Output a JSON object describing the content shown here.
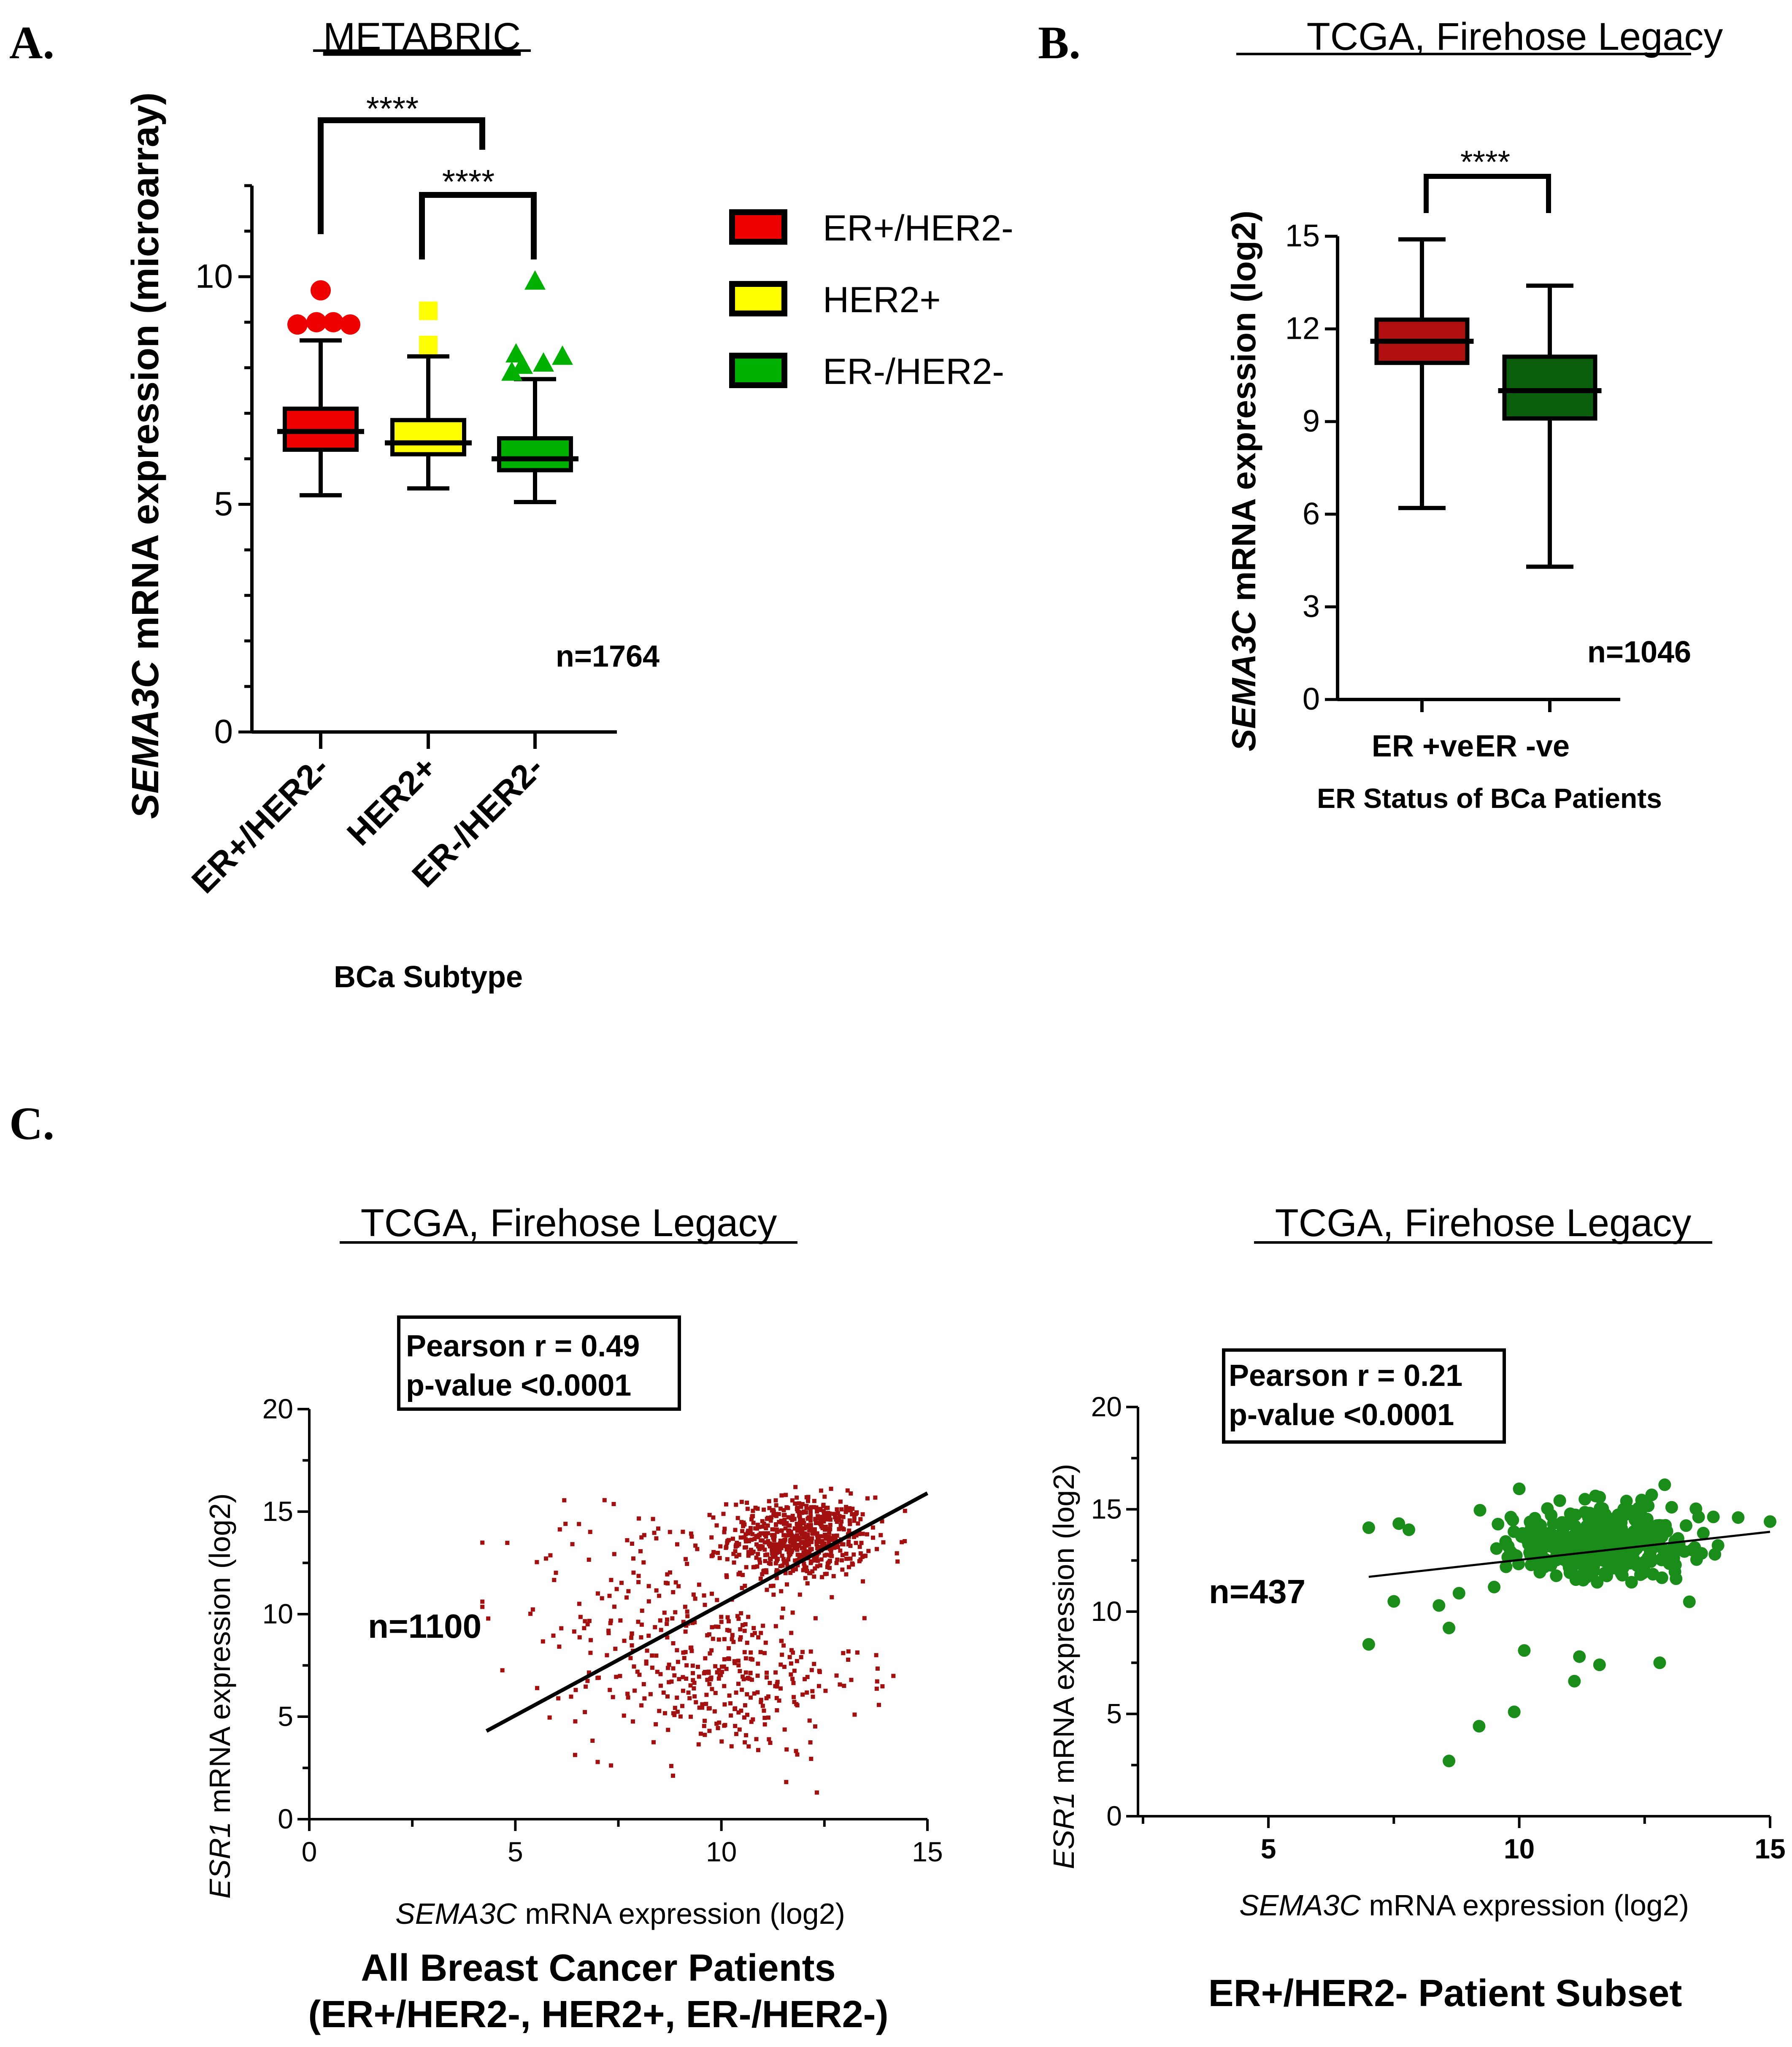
{
  "panel_labels": {
    "a": "A",
    "b": "B",
    "c": "C"
  },
  "colors": {
    "er_pos_her2_neg": "#ee0000",
    "her2_pos": "#ffff00",
    "er_neg_her2_neg": "#00b000",
    "er_pos_box": "#b01010",
    "er_neg_box": "#0b5e0b",
    "scatter_all": "#a31010",
    "scatter_subset": "#1a8c1a"
  },
  "chart_data": [
    {
      "id": "panelA",
      "type": "box",
      "title": "METABRIC",
      "xlabel": "BCa Subtype",
      "ylabel_italic": "SEMA3C",
      "ylabel_rest": " mRNA expression (microarray)",
      "ylim": [
        0,
        12
      ],
      "yticks": [
        0,
        5,
        10
      ],
      "n_label": "n=1764",
      "significance": [
        "****",
        "****"
      ],
      "legend": [
        "ER+/HER2-",
        "HER2+",
        "ER-/HER2-"
      ],
      "categories": [
        "ER+/HER2-",
        "HER2+",
        "ER-/HER2-"
      ],
      "boxes": [
        {
          "name": "ER+/HER2-",
          "whisker_low": 5.2,
          "q1": 6.2,
          "median": 6.6,
          "q3": 7.1,
          "whisker_high": 8.6,
          "outliers": [
            8.95,
            9.0,
            9.0,
            8.95,
            9.7
          ]
        },
        {
          "name": "HER2+",
          "whisker_low": 5.35,
          "q1": 6.1,
          "median": 6.35,
          "q3": 6.85,
          "whisker_high": 8.25,
          "outliers": [
            8.5,
            9.25
          ]
        },
        {
          "name": "ER-/HER2-",
          "whisker_low": 5.05,
          "q1": 5.75,
          "median": 6.0,
          "q3": 6.45,
          "whisker_high": 7.75,
          "outliers": [
            7.9,
            8.05,
            8.1,
            8.25,
            8.3,
            9.9
          ]
        }
      ]
    },
    {
      "id": "panelB",
      "type": "box",
      "title": "TCGA, Firehose Legacy",
      "xlabel": "ER Status of BCa Patients",
      "ylabel_italic": "SEMA3C",
      "ylabel_rest": " mRNA expression (log2)",
      "ylim": [
        0,
        15
      ],
      "yticks": [
        0,
        3,
        6,
        9,
        12,
        15
      ],
      "n_label": "n=1046",
      "significance": [
        "****"
      ],
      "categories": [
        "ER +ve",
        "ER -ve"
      ],
      "boxes": [
        {
          "name": "ER +ve",
          "whisker_low": 6.2,
          "q1": 10.9,
          "median": 11.6,
          "q3": 12.3,
          "whisker_high": 14.9
        },
        {
          "name": "ER -ve",
          "whisker_low": 4.3,
          "q1": 9.1,
          "median": 10.0,
          "q3": 11.1,
          "whisker_high": 13.4
        }
      ]
    },
    {
      "id": "panelC1",
      "type": "scatter",
      "title": "TCGA, Firehose Legacy",
      "xlabel_italic": "SEMA3C",
      "xlabel_rest": " mRNA expression (log2)",
      "ylabel_italic": "ESR1",
      "ylabel_rest": " mRNA expression (log2)",
      "xlim": [
        0,
        15
      ],
      "ylim": [
        0,
        20
      ],
      "xticks": [
        0,
        5,
        10,
        15
      ],
      "yticks": [
        0,
        5,
        10,
        15,
        20
      ],
      "stats": [
        "Pearson r = 0.49",
        "p-value <0.0001"
      ],
      "n_label": "n=1100",
      "fit_line": {
        "x": [
          4.3,
          15.0
        ],
        "y": [
          4.3,
          15.9
        ]
      },
      "caption": [
        "All Breast Cancer Patients",
        "(ER+/HER2-, HER2+, ER-/HER2-)"
      ],
      "clusters": [
        {
          "cx": 11.9,
          "cy": 13.7,
          "sx": 0.85,
          "sy": 1.0,
          "n": 650
        },
        {
          "cx": 10.0,
          "cy": 6.8,
          "sx": 1.7,
          "sy": 1.9,
          "n": 330
        },
        {
          "cx": 8.2,
          "cy": 11.0,
          "sx": 1.7,
          "sy": 2.2,
          "n": 120
        }
      ]
    },
    {
      "id": "panelC2",
      "type": "scatter",
      "title": "TCGA, Firehose Legacy",
      "xlabel_italic": "SEMA3C",
      "xlabel_rest": " mRNA expression (log2)",
      "ylabel_italic": "ESR1",
      "ylabel_rest": " mRNA expression (log2)",
      "xlim": [
        2.4,
        15
      ],
      "ylim": [
        0,
        20
      ],
      "xticks": [
        5,
        10,
        15
      ],
      "yticks": [
        0,
        5,
        10,
        15,
        20
      ],
      "stats": [
        "Pearson r = 0.21",
        "p-value <0.0001"
      ],
      "n_label": "n=437",
      "fit_line": {
        "x": [
          7.0,
          15.0
        ],
        "y": [
          11.7,
          13.9
        ]
      },
      "caption": [
        "ER+/HER2- Patient Subset"
      ],
      "clusters": [
        {
          "cx": 11.7,
          "cy": 13.4,
          "sx": 0.9,
          "sy": 0.9,
          "n": 400
        }
      ],
      "extra_points": [
        [
          8.6,
          2.7
        ],
        [
          9.2,
          4.4
        ],
        [
          9.9,
          5.1
        ],
        [
          11.1,
          6.6
        ],
        [
          11.2,
          7.8
        ],
        [
          11.6,
          7.4
        ],
        [
          12.8,
          7.5
        ],
        [
          7.0,
          8.4
        ],
        [
          10.1,
          8.1
        ],
        [
          8.6,
          9.2
        ],
        [
          7.0,
          14.1
        ],
        [
          7.6,
          14.3
        ],
        [
          7.8,
          14.0
        ],
        [
          7.5,
          10.5
        ],
        [
          8.4,
          10.3
        ],
        [
          13.9,
          12.8
        ],
        [
          15.0,
          14.4
        ],
        [
          12.9,
          16.2
        ],
        [
          10.0,
          16.0
        ],
        [
          8.8,
          10.9
        ],
        [
          9.5,
          11.2
        ]
      ]
    }
  ]
}
